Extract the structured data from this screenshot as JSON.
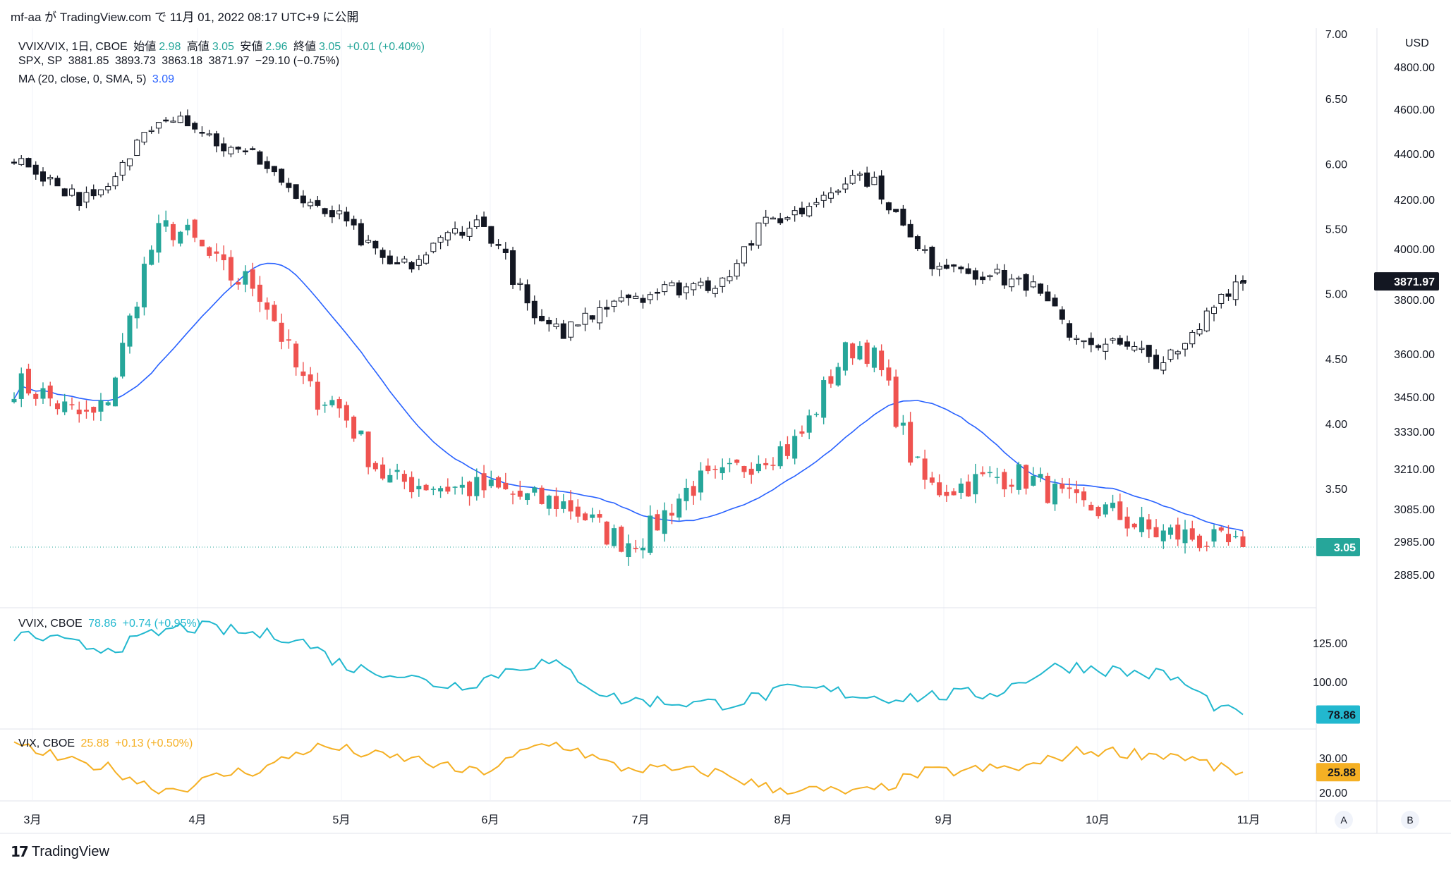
{
  "header": {
    "text": "mf-aa が TradingView.com で 11月 01, 2022 08:17 UTC+9 に公開"
  },
  "legend_main": [
    {
      "name": "VVIX/VIX, 1日, CBOE",
      "o_label": "始値",
      "o": "2.98",
      "h_label": "高値",
      "h": "3.05",
      "l_label": "安値",
      "l": "2.96",
      "c_label": "終値",
      "c": "3.05",
      "chg": "+0.01 (+0.40%)"
    },
    {
      "name": "SPX, SP",
      "o": "3881.85",
      "h": "3893.73",
      "l": "3863.18",
      "c": "3871.97",
      "chg": "−29.10 (−0.75%)"
    },
    {
      "name": "MA (20, close, 0, SMA, 5)",
      "value": "3.09"
    }
  ],
  "legend_vvix": {
    "name": "VVIX, CBOE",
    "value": "78.86",
    "chg": "+0.74 (+0.95%)"
  },
  "legend_vix": {
    "name": "VIX, CBOE",
    "value": "25.88",
    "chg": "+0.13 (+0.50%)"
  },
  "price_labels": {
    "spx_last": "3871.97",
    "ratio_last": "3.05",
    "vvix_last": "78.86",
    "vix_last": "25.88",
    "currency": "USD"
  },
  "buttons": {
    "a": "A",
    "b": "B"
  },
  "branding": {
    "name": "TradingView"
  },
  "colors": {
    "up": "#26a69a",
    "down": "#ef5350",
    "spx": "#131722",
    "ma": "#2962ff",
    "vvix": "#22b8cf",
    "vix": "#f5b024",
    "grid": "#f0f3fa"
  },
  "chart_data": [
    {
      "type": "candlestick",
      "title": "VVIX/VIX, 1日, CBOE",
      "x_ticks": [
        "3月",
        "4月",
        "5月",
        "6月",
        "7月",
        "8月",
        "9月",
        "10月",
        "11月"
      ],
      "y_ticks": [
        "7.00",
        "6.50",
        "6.00",
        "5.50",
        "5.00",
        "4.50",
        "4.00",
        "3.50"
      ],
      "ylim": [
        2.7,
        7.0
      ],
      "anchors": [
        {
          "month": "3月",
          "close": 4.3
        },
        {
          "month": "3月中旬",
          "close": 4.05
        },
        {
          "month": "4月",
          "close": 5.5
        },
        {
          "month": "4月中旬",
          "close": 5.1
        },
        {
          "month": "5月",
          "close": 4.2
        },
        {
          "month": "5月中旬",
          "close": 3.55
        },
        {
          "month": "6月",
          "close": 3.5
        },
        {
          "month": "6月中旬",
          "close": 3.4
        },
        {
          "month": "7月",
          "close": 3.1
        },
        {
          "month": "7月中旬",
          "close": 3.55
        },
        {
          "month": "8月",
          "close": 3.8
        },
        {
          "month": "8月中旬",
          "close": 4.6
        },
        {
          "month": "9月",
          "close": 3.5
        },
        {
          "month": "9月中旬",
          "close": 3.6
        },
        {
          "month": "10月",
          "close": 3.35
        },
        {
          "month": "10月中旬",
          "close": 3.15
        },
        {
          "month": "11月",
          "close": 3.05
        }
      ],
      "last": 3.05
    },
    {
      "type": "candlestick",
      "title": "SPX, SP",
      "y_ticks": [
        "4800.00",
        "4600.00",
        "4400.00",
        "4200.00",
        "4000.00",
        "3800.00",
        "3600.00",
        "3450.00",
        "3330.00",
        "3210.00",
        "3085.00",
        "2985.00",
        "2885.00"
      ],
      "anchors": [
        {
          "month": "3月",
          "close": 4360
        },
        {
          "month": "3月中旬",
          "close": 4200
        },
        {
          "month": "4月",
          "close": 4580
        },
        {
          "month": "4月中旬",
          "close": 4400
        },
        {
          "month": "5月",
          "close": 4150
        },
        {
          "month": "5月中旬",
          "close": 3930
        },
        {
          "month": "6月",
          "close": 4100
        },
        {
          "month": "6月中旬",
          "close": 3680
        },
        {
          "month": "7月",
          "close": 3820
        },
        {
          "month": "7月中旬",
          "close": 3860
        },
        {
          "month": "8月",
          "close": 4130
        },
        {
          "month": "8月中旬",
          "close": 4300
        },
        {
          "month": "9月",
          "close": 3950
        },
        {
          "month": "9月中旬",
          "close": 3880
        },
        {
          "month": "10月",
          "close": 3650
        },
        {
          "month": "10月中旬",
          "close": 3580
        },
        {
          "month": "11月",
          "close": 3871.97
        }
      ],
      "last": 3871.97
    },
    {
      "type": "line",
      "title": "MA (20, close, 0, SMA, 5)",
      "last": 3.09
    },
    {
      "type": "line",
      "title": "VVIX, CBOE",
      "y_ticks": [
        "125.00",
        "100.00"
      ],
      "ylim": [
        75,
        140
      ],
      "anchors": [
        {
          "month": "3月",
          "value": 130
        },
        {
          "month": "4月",
          "value": 122
        },
        {
          "month": "4月中旬",
          "value": 135
        },
        {
          "month": "5月",
          "value": 130
        },
        {
          "month": "5月中旬",
          "value": 108
        },
        {
          "month": "6月",
          "value": 98
        },
        {
          "month": "6月中旬",
          "value": 112
        },
        {
          "month": "7月",
          "value": 88
        },
        {
          "month": "8月",
          "value": 86
        },
        {
          "month": "8月中旬",
          "value": 95
        },
        {
          "month": "9月",
          "value": 90
        },
        {
          "month": "9月中旬",
          "value": 92
        },
        {
          "month": "10月",
          "value": 110
        },
        {
          "month": "10月中旬",
          "value": 105
        },
        {
          "month": "11月",
          "value": 78.86
        }
      ],
      "last": 78.86
    },
    {
      "type": "line",
      "title": "VIX, CBOE",
      "y_ticks": [
        "30.00",
        "20.00"
      ],
      "ylim": [
        17,
        38
      ],
      "anchors": [
        {
          "month": "3月",
          "value": 33
        },
        {
          "month": "3月中旬",
          "value": 28
        },
        {
          "month": "4月",
          "value": 21
        },
        {
          "month": "4月中旬",
          "value": 26
        },
        {
          "month": "5月",
          "value": 33
        },
        {
          "month": "5月中旬",
          "value": 30
        },
        {
          "month": "6月",
          "value": 26
        },
        {
          "month": "6月中旬",
          "value": 34
        },
        {
          "month": "7月",
          "value": 27
        },
        {
          "month": "7月中旬",
          "value": 26
        },
        {
          "month": "8月",
          "value": 21
        },
        {
          "month": "8月中旬",
          "value": 20
        },
        {
          "month": "9月",
          "value": 26
        },
        {
          "month": "9月中旬",
          "value": 27
        },
        {
          "month": "10月",
          "value": 32
        },
        {
          "month": "10月中旬",
          "value": 31
        },
        {
          "month": "11月",
          "value": 25.88
        }
      ],
      "last": 25.88
    }
  ]
}
